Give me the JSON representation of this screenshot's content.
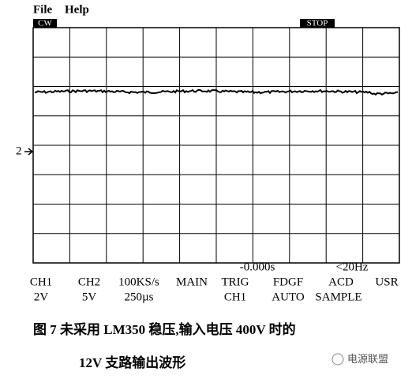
{
  "menu": [
    "File",
    "Help"
  ],
  "status": {
    "mode": "CW",
    "state": "STOP"
  },
  "channel_marker": "2",
  "readouts": {
    "trigger_time": "-0.000s",
    "frequency": "<20Hz"
  },
  "controls": [
    {
      "label": "CH1",
      "value": "2V"
    },
    {
      "label": "CH2",
      "value": "5V"
    },
    {
      "label": "100KS/s",
      "value": "250µs"
    },
    {
      "label": "MAIN"
    },
    {
      "label": "TRIG",
      "value": "CH1"
    },
    {
      "label": "FDGF",
      "value": "AUTO"
    },
    {
      "label": "ACD",
      "value": "SAMPLE"
    },
    {
      "label": "USR"
    }
  ],
  "caption": {
    "line1": "图 7    未采用 LM350 稳压,输入电压 400V 时的",
    "line2": "12V 支路输出波形"
  },
  "watermark": "电源联盟"
}
